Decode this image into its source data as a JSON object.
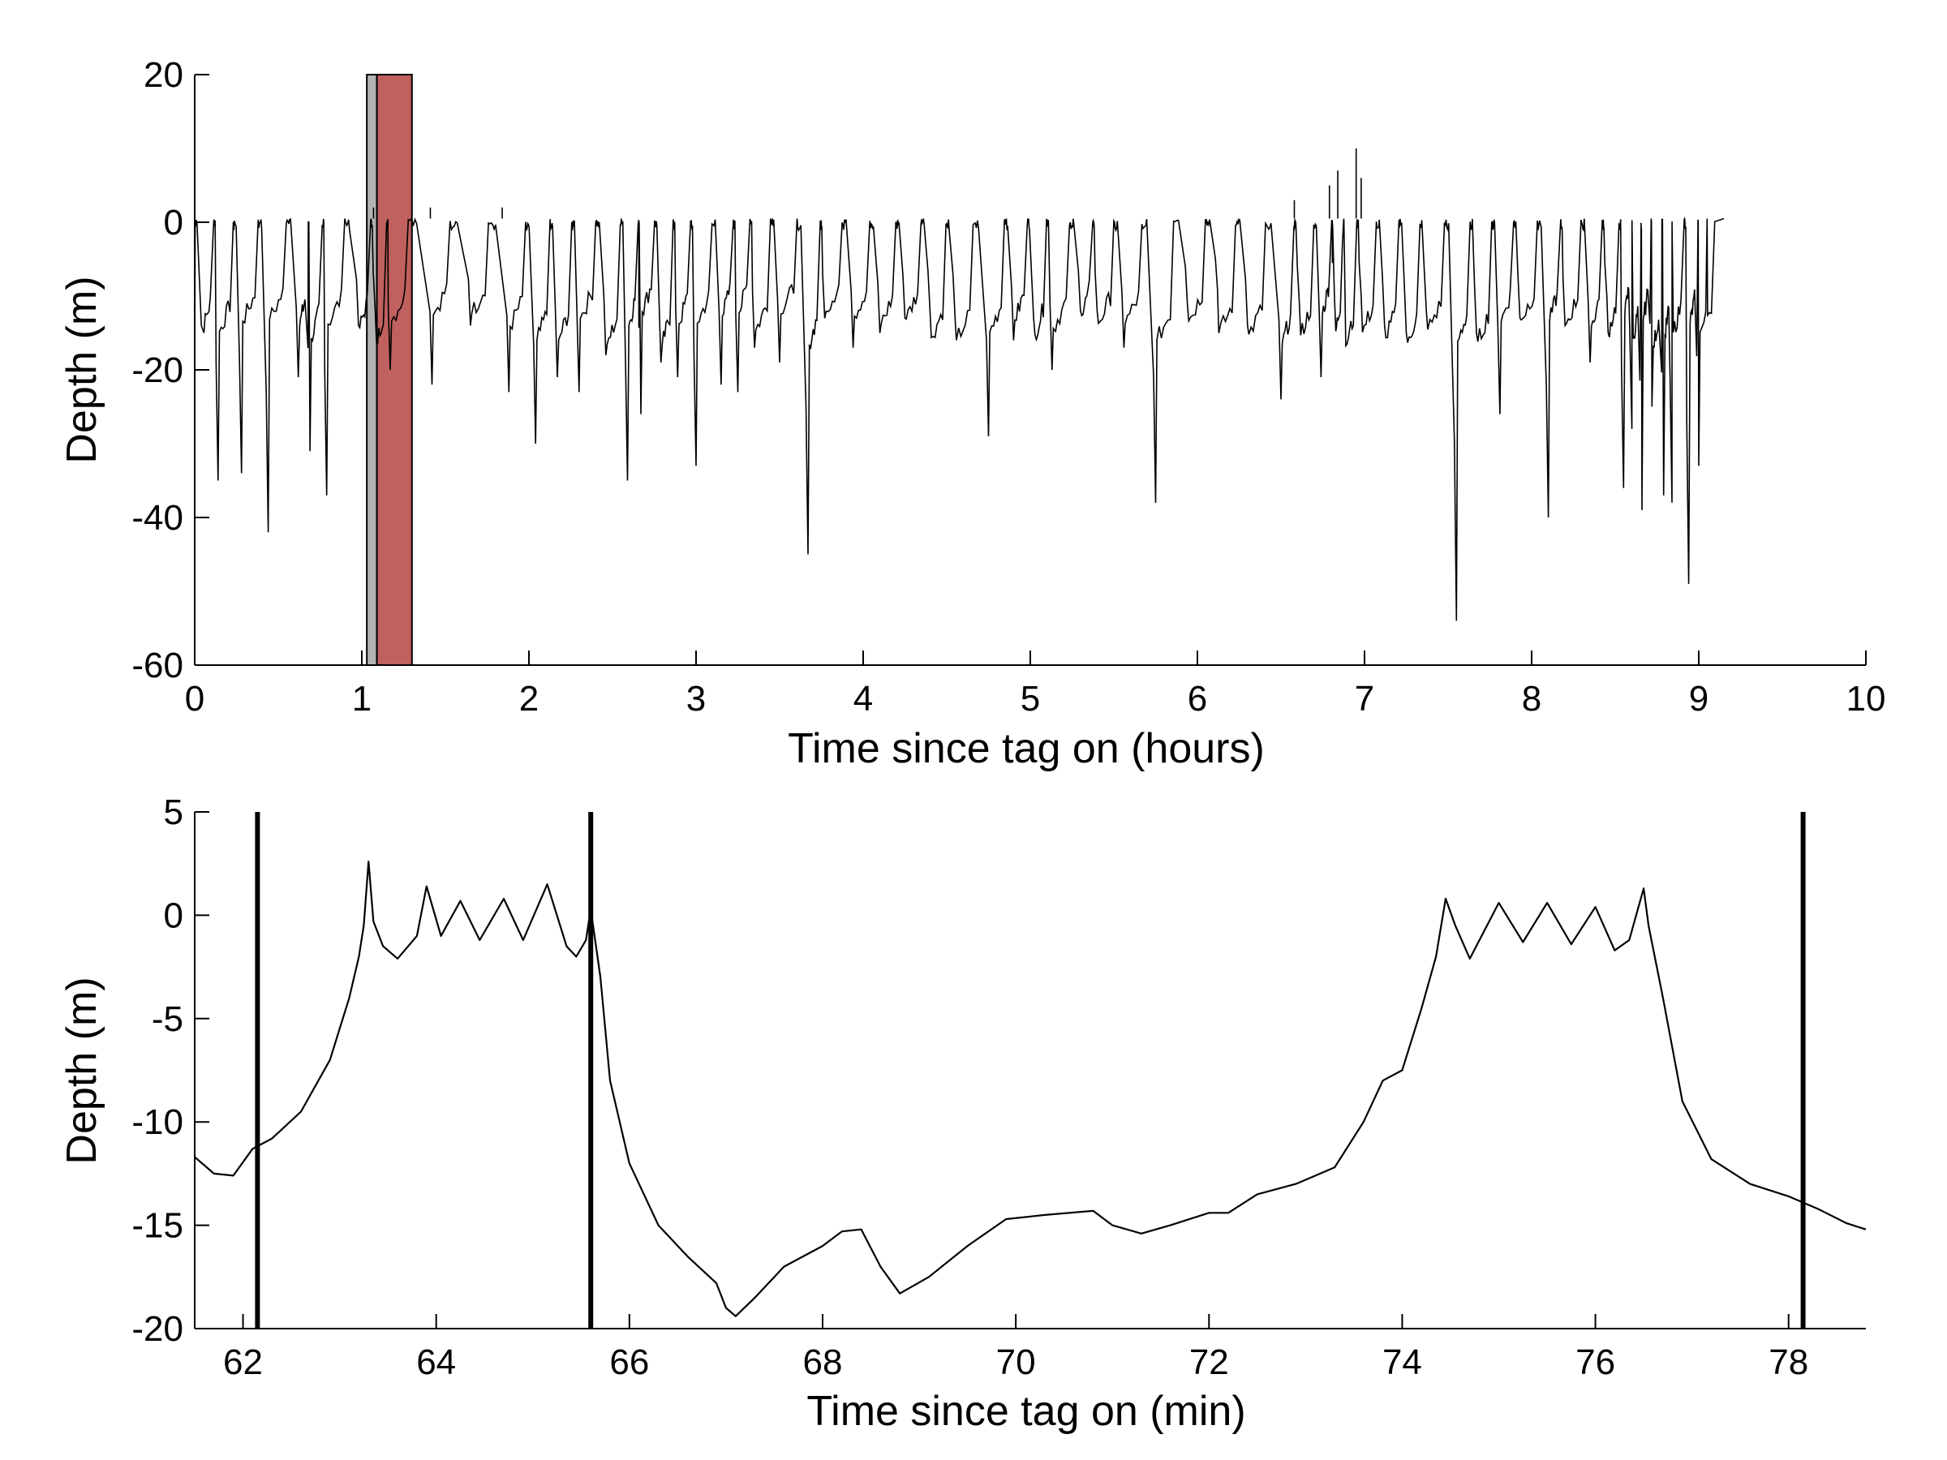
{
  "chart_data": [
    {
      "type": "line",
      "title": "",
      "xlabel": "Time since tag on (hours)",
      "ylabel": "Depth (m)",
      "xlim": [
        0,
        10
      ],
      "ylim": [
        -60,
        20
      ],
      "xticks": [
        0,
        1,
        2,
        3,
        4,
        5,
        6,
        7,
        8,
        9,
        10
      ],
      "yticks": [
        -60,
        -40,
        -20,
        0,
        20
      ],
      "grid": false,
      "highlight_bands": [
        {
          "x_start": 1.03,
          "x_end": 1.09,
          "color": "#b3b3b3",
          "label": ""
        },
        {
          "x_start": 1.09,
          "x_end": 1.3,
          "color": "#c0605f",
          "label": ""
        }
      ],
      "surface_level": 0.5,
      "dives": [
        [
          0.04,
          -14
        ],
        [
          0.14,
          -35
        ],
        [
          0.28,
          -34
        ],
        [
          0.44,
          -42
        ],
        [
          0.62,
          -21
        ],
        [
          0.69,
          -31
        ],
        [
          0.79,
          -37
        ],
        [
          0.98,
          -14
        ],
        [
          1.08,
          -12
        ],
        [
          1.17,
          -20
        ],
        [
          1.42,
          -22
        ],
        [
          1.65,
          -14
        ],
        [
          1.88,
          -23
        ],
        [
          2.04,
          -30
        ],
        [
          2.17,
          -21
        ],
        [
          2.3,
          -23
        ],
        [
          2.46,
          -18
        ],
        [
          2.59,
          -35
        ],
        [
          2.67,
          -26
        ],
        [
          2.79,
          -19
        ],
        [
          2.89,
          -21
        ],
        [
          3.0,
          -33
        ],
        [
          3.15,
          -22
        ],
        [
          3.25,
          -23
        ],
        [
          3.35,
          -17
        ],
        [
          3.5,
          -19
        ],
        [
          3.67,
          -45
        ],
        [
          3.77,
          -13
        ],
        [
          3.94,
          -17
        ],
        [
          4.1,
          -15
        ],
        [
          4.25,
          -13
        ],
        [
          4.4,
          -12
        ],
        [
          4.55,
          -13
        ],
        [
          4.75,
          -29
        ],
        [
          4.9,
          -16
        ],
        [
          5.02,
          -13
        ],
        [
          5.13,
          -20
        ],
        [
          5.3,
          -12
        ],
        [
          5.4,
          -12
        ],
        [
          5.56,
          -17
        ],
        [
          5.75,
          -38
        ],
        [
          5.94,
          -11
        ],
        [
          6.12,
          -9
        ],
        [
          6.3,
          -14
        ],
        [
          6.5,
          -24
        ],
        [
          6.61,
          -11
        ],
        [
          6.74,
          -21
        ],
        [
          6.82,
          -10
        ],
        [
          6.88,
          -5
        ],
        [
          6.98,
          -10
        ],
        [
          7.12,
          -14
        ],
        [
          7.25,
          -15
        ],
        [
          7.37,
          -12
        ],
        [
          7.55,
          -54
        ],
        [
          7.67,
          -15
        ],
        [
          7.81,
          -26
        ],
        [
          7.93,
          -13
        ],
        [
          8.1,
          -40
        ],
        [
          8.2,
          -14
        ],
        [
          8.35,
          -19
        ],
        [
          8.45,
          -10
        ],
        [
          8.55,
          -36
        ],
        [
          8.6,
          -28
        ],
        [
          8.66,
          -39
        ],
        [
          8.72,
          -25
        ],
        [
          8.79,
          -37
        ],
        [
          8.84,
          -38
        ],
        [
          8.94,
          -49
        ],
        [
          9.0,
          -33
        ]
      ],
      "surface_spikes": [
        [
          1.07,
          2
        ],
        [
          1.41,
          2
        ],
        [
          1.84,
          2
        ],
        [
          6.58,
          3
        ],
        [
          6.79,
          5
        ],
        [
          6.84,
          7
        ],
        [
          6.95,
          10
        ],
        [
          6.98,
          6
        ]
      ],
      "record_end": 9.15
    },
    {
      "type": "line",
      "title": "",
      "xlabel": "Time since tag on (min)",
      "ylabel": "Depth (m)",
      "xlim": [
        61.5,
        78.8
      ],
      "ylim": [
        -20,
        5
      ],
      "xticks": [
        62,
        64,
        66,
        68,
        70,
        72,
        74,
        76,
        78
      ],
      "yticks": [
        -20,
        -15,
        -10,
        -5,
        0,
        5
      ],
      "grid": false,
      "markers": [
        62.15,
        65.6,
        78.15
      ],
      "series": [
        {
          "name": "depth",
          "x": [
            61.5,
            61.7,
            61.9,
            62.1,
            62.3,
            62.6,
            62.9,
            63.1,
            63.2,
            63.25,
            63.3,
            63.35,
            63.45,
            63.6,
            63.8,
            63.9,
            64.05,
            64.25,
            64.45,
            64.7,
            64.9,
            65.15,
            65.35,
            65.45,
            65.55,
            65.6,
            65.7,
            65.8,
            66.0,
            66.3,
            66.6,
            66.9,
            67.0,
            67.1,
            67.3,
            67.6,
            68.0,
            68.2,
            68.4,
            68.6,
            68.8,
            69.1,
            69.5,
            69.9,
            70.3,
            70.8,
            71.0,
            71.3,
            71.6,
            72.0,
            72.2,
            72.5,
            72.9,
            73.3,
            73.6,
            73.8,
            74.0,
            74.2,
            74.35,
            74.45,
            74.55,
            74.7,
            75.0,
            75.25,
            75.5,
            75.75,
            76.0,
            76.2,
            76.35,
            76.5,
            76.55,
            76.7,
            76.9,
            77.2,
            77.6,
            78.0,
            78.3,
            78.6,
            78.8
          ],
          "y": [
            -11.7,
            -12.5,
            -12.6,
            -11.3,
            -10.8,
            -9.5,
            -7.0,
            -4.0,
            -2.0,
            -0.5,
            2.6,
            -0.3,
            -1.5,
            -2.1,
            -1.0,
            1.4,
            -1.0,
            0.7,
            -1.2,
            0.8,
            -1.2,
            1.5,
            -1.5,
            -2.0,
            -1.2,
            0.3,
            -3.0,
            -8.0,
            -12.0,
            -15.0,
            -16.5,
            -17.8,
            -19.0,
            -19.4,
            -18.5,
            -17.0,
            -16.0,
            -15.3,
            -15.2,
            -17.0,
            -18.3,
            -17.5,
            -16.0,
            -14.7,
            -14.5,
            -14.3,
            -15.0,
            -15.4,
            -15.0,
            -14.4,
            -14.4,
            -13.5,
            -13.0,
            -12.2,
            -10.0,
            -8.0,
            -7.5,
            -4.5,
            -2.0,
            0.8,
            -0.5,
            -2.1,
            0.6,
            -1.3,
            0.6,
            -1.4,
            0.4,
            -1.7,
            -1.2,
            1.3,
            -0.5,
            -4.0,
            -9.0,
            -11.8,
            -13.0,
            -13.6,
            -14.2,
            -14.9,
            -15.2
          ]
        }
      ]
    }
  ]
}
